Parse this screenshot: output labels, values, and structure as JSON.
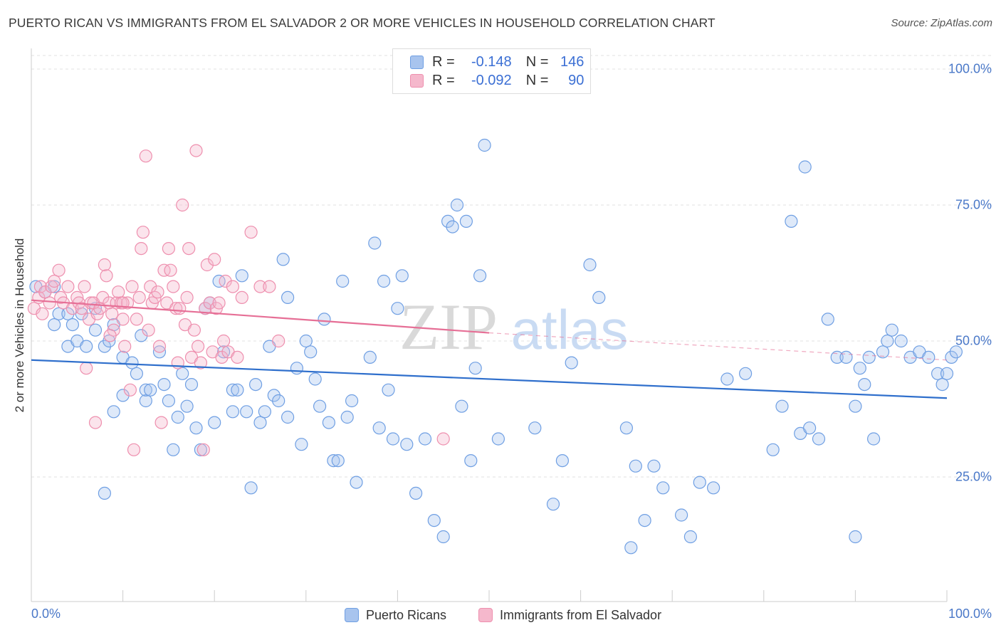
{
  "title": "PUERTO RICAN VS IMMIGRANTS FROM EL SALVADOR 2 OR MORE VEHICLES IN HOUSEHOLD CORRELATION CHART",
  "source": "Source: ZipAtlas.com",
  "watermark": {
    "zip": "ZIP",
    "atlas": "atlas"
  },
  "legend": {
    "rows": [
      {
        "r_label": "R =",
        "r_value": "-0.148",
        "n_label": "N =",
        "n_value": "146",
        "color": "#a8c4ee"
      },
      {
        "r_label": "R =",
        "r_value": "-0.092",
        "n_label": "N =",
        "n_value": "90",
        "color": "#f5b8cc"
      }
    ]
  },
  "bottom_legend": {
    "items": [
      {
        "label": "Puerto Ricans",
        "color": "#a8c4ee"
      },
      {
        "label": "Immigrants from El Salvador",
        "color": "#f5b8cc"
      }
    ]
  },
  "chart_data": {
    "type": "scatter",
    "ylabel": "2 or more Vehicles in Household",
    "xlim": [
      0,
      100
    ],
    "ylim": [
      0,
      100
    ],
    "x_tick_labels": [
      "0.0%",
      "100.0%"
    ],
    "y_ticks": [
      {
        "value": 100,
        "label": "100.0%"
      },
      {
        "value": 75,
        "label": "75.0%"
      },
      {
        "value": 50,
        "label": "50.0%"
      },
      {
        "value": 25,
        "label": "25.0%"
      }
    ],
    "grid": "horizontal dashed",
    "legend_placement": "top-center",
    "series": [
      {
        "name": "Puerto Ricans",
        "color": "#6f9fe3",
        "fill": "#a8c4ee",
        "trend": {
          "x0": 0,
          "y0": 46.5,
          "x1": 100,
          "y1": 39.5,
          "color": "#2f6fcc"
        },
        "points": [
          [
            0.5,
            60
          ],
          [
            1.5,
            59
          ],
          [
            2.5,
            60
          ],
          [
            2.5,
            53
          ],
          [
            3,
            55
          ],
          [
            4,
            49
          ],
          [
            4,
            55
          ],
          [
            4.5,
            53
          ],
          [
            5,
            50
          ],
          [
            5.5,
            55
          ],
          [
            6,
            49
          ],
          [
            7,
            56
          ],
          [
            7,
            52
          ],
          [
            8,
            22
          ],
          [
            8,
            49
          ],
          [
            8.5,
            50
          ],
          [
            9,
            37
          ],
          [
            9,
            53
          ],
          [
            10,
            40
          ],
          [
            10,
            47
          ],
          [
            11,
            46
          ],
          [
            11.5,
            44
          ],
          [
            12,
            51
          ],
          [
            12.5,
            39
          ],
          [
            12.5,
            41
          ],
          [
            13,
            41
          ],
          [
            14,
            48
          ],
          [
            14.5,
            42
          ],
          [
            15,
            39
          ],
          [
            15.5,
            30
          ],
          [
            16,
            36
          ],
          [
            16.5,
            44
          ],
          [
            17,
            38
          ],
          [
            17.5,
            42
          ],
          [
            18,
            34
          ],
          [
            18.5,
            30
          ],
          [
            19,
            56
          ],
          [
            19.5,
            57
          ],
          [
            20,
            35
          ],
          [
            20.5,
            61
          ],
          [
            21,
            48
          ],
          [
            22,
            37
          ],
          [
            22,
            41
          ],
          [
            22.5,
            41
          ],
          [
            23,
            62
          ],
          [
            23.5,
            37
          ],
          [
            24,
            23
          ],
          [
            24.5,
            42
          ],
          [
            25,
            35
          ],
          [
            25.5,
            37
          ],
          [
            26,
            49
          ],
          [
            26.5,
            40
          ],
          [
            27,
            39
          ],
          [
            27.5,
            65
          ],
          [
            28,
            58
          ],
          [
            28,
            36
          ],
          [
            29,
            45
          ],
          [
            29.5,
            31
          ],
          [
            30,
            50
          ],
          [
            30.5,
            48
          ],
          [
            31,
            43
          ],
          [
            31.5,
            38
          ],
          [
            32,
            54
          ],
          [
            32.5,
            35
          ],
          [
            33,
            28
          ],
          [
            33.5,
            28
          ],
          [
            34,
            61
          ],
          [
            34.5,
            36
          ],
          [
            35,
            39
          ],
          [
            35.5,
            24
          ],
          [
            37,
            47
          ],
          [
            37.5,
            68
          ],
          [
            38,
            34
          ],
          [
            38.5,
            61
          ],
          [
            39,
            41
          ],
          [
            39.5,
            32
          ],
          [
            40,
            56
          ],
          [
            40.5,
            62
          ],
          [
            41,
            31
          ],
          [
            42,
            22
          ],
          [
            43,
            32
          ],
          [
            44,
            17
          ],
          [
            45,
            14
          ],
          [
            45.5,
            72
          ],
          [
            46,
            71
          ],
          [
            46.5,
            75
          ],
          [
            47,
            38
          ],
          [
            47.5,
            72
          ],
          [
            48,
            28
          ],
          [
            48.5,
            45
          ],
          [
            49,
            62
          ],
          [
            49.5,
            86
          ],
          [
            51,
            32
          ],
          [
            55,
            34
          ],
          [
            57,
            20
          ],
          [
            58,
            28
          ],
          [
            59,
            46
          ],
          [
            61,
            64
          ],
          [
            62,
            58
          ],
          [
            65,
            34
          ],
          [
            65.5,
            12
          ],
          [
            66,
            27
          ],
          [
            67,
            17
          ],
          [
            68,
            27
          ],
          [
            69,
            23
          ],
          [
            71,
            18
          ],
          [
            72,
            14
          ],
          [
            73,
            24
          ],
          [
            74.5,
            23
          ],
          [
            76,
            43
          ],
          [
            78,
            44
          ],
          [
            81,
            30
          ],
          [
            82,
            38
          ],
          [
            83,
            72
          ],
          [
            84,
            33
          ],
          [
            84.5,
            82
          ],
          [
            85,
            34
          ],
          [
            86,
            32
          ],
          [
            87,
            54
          ],
          [
            88,
            47
          ],
          [
            89,
            47
          ],
          [
            90,
            38
          ],
          [
            90.5,
            45
          ],
          [
            91,
            42
          ],
          [
            91.5,
            47
          ],
          [
            92,
            32
          ],
          [
            93,
            48
          ],
          [
            93.5,
            50
          ],
          [
            94,
            52
          ],
          [
            95,
            50
          ],
          [
            96,
            47
          ],
          [
            97,
            48
          ],
          [
            98,
            47
          ],
          [
            99,
            44
          ],
          [
            99.5,
            42
          ],
          [
            100,
            44
          ],
          [
            100.5,
            47
          ],
          [
            101,
            48
          ],
          [
            90,
            14
          ]
        ]
      },
      {
        "name": "Immigrants from El Salvador",
        "color": "#ee8fae",
        "fill": "#f5b8cc",
        "trend": {
          "x0": 0,
          "y0": 57.5,
          "x1": 50,
          "y1": 51.5,
          "x2": 100,
          "y2": 46.5,
          "color": "#e66f96"
        },
        "points": [
          [
            0.3,
            56
          ],
          [
            0.8,
            58
          ],
          [
            1,
            60
          ],
          [
            1.2,
            55
          ],
          [
            1.5,
            59
          ],
          [
            2,
            57
          ],
          [
            2.2,
            60
          ],
          [
            2.5,
            61
          ],
          [
            3,
            63
          ],
          [
            3.2,
            58
          ],
          [
            3.5,
            57
          ],
          [
            4,
            60
          ],
          [
            4.5,
            56
          ],
          [
            5,
            58
          ],
          [
            5.2,
            57
          ],
          [
            5.5,
            56
          ],
          [
            5.8,
            60
          ],
          [
            6,
            45
          ],
          [
            6.3,
            54
          ],
          [
            6.5,
            57
          ],
          [
            6.8,
            57
          ],
          [
            7,
            35
          ],
          [
            7.2,
            55
          ],
          [
            7.5,
            56
          ],
          [
            7.8,
            58
          ],
          [
            8,
            64
          ],
          [
            8.2,
            62
          ],
          [
            8.5,
            57
          ],
          [
            8.8,
            55
          ],
          [
            9,
            52
          ],
          [
            9.3,
            57
          ],
          [
            9.5,
            59
          ],
          [
            9.8,
            57
          ],
          [
            10,
            54
          ],
          [
            10.2,
            49
          ],
          [
            10.5,
            57
          ],
          [
            10.8,
            41
          ],
          [
            11,
            60
          ],
          [
            11.2,
            30
          ],
          [
            11.5,
            54
          ],
          [
            11.8,
            58
          ],
          [
            12,
            67
          ],
          [
            12.2,
            70
          ],
          [
            12.5,
            84
          ],
          [
            12.8,
            52
          ],
          [
            13,
            60
          ],
          [
            13.2,
            57
          ],
          [
            13.5,
            58
          ],
          [
            14,
            49
          ],
          [
            14.2,
            35
          ],
          [
            14.5,
            63
          ],
          [
            14.8,
            57
          ],
          [
            15,
            67
          ],
          [
            15.2,
            63
          ],
          [
            15.5,
            60
          ],
          [
            15.8,
            56
          ],
          [
            16,
            46
          ],
          [
            16.2,
            56
          ],
          [
            16.5,
            75
          ],
          [
            16.8,
            53
          ],
          [
            17,
            58
          ],
          [
            17.2,
            67
          ],
          [
            17.5,
            47
          ],
          [
            17.8,
            52
          ],
          [
            18,
            85
          ],
          [
            18.2,
            49
          ],
          [
            18.5,
            46
          ],
          [
            18.8,
            30
          ],
          [
            19,
            56
          ],
          [
            19.2,
            64
          ],
          [
            19.5,
            57
          ],
          [
            19.8,
            48
          ],
          [
            20,
            65
          ],
          [
            20.2,
            56
          ],
          [
            20.5,
            57
          ],
          [
            20.8,
            47
          ],
          [
            21,
            50
          ],
          [
            21.2,
            61
          ],
          [
            21.5,
            48
          ],
          [
            22,
            60
          ],
          [
            23,
            58
          ],
          [
            24,
            70
          ],
          [
            25,
            60
          ],
          [
            26,
            60
          ],
          [
            27,
            50
          ],
          [
            45,
            32
          ],
          [
            10,
            57
          ],
          [
            8.6,
            51
          ],
          [
            13.8,
            59
          ],
          [
            22.5,
            47
          ]
        ]
      }
    ]
  }
}
